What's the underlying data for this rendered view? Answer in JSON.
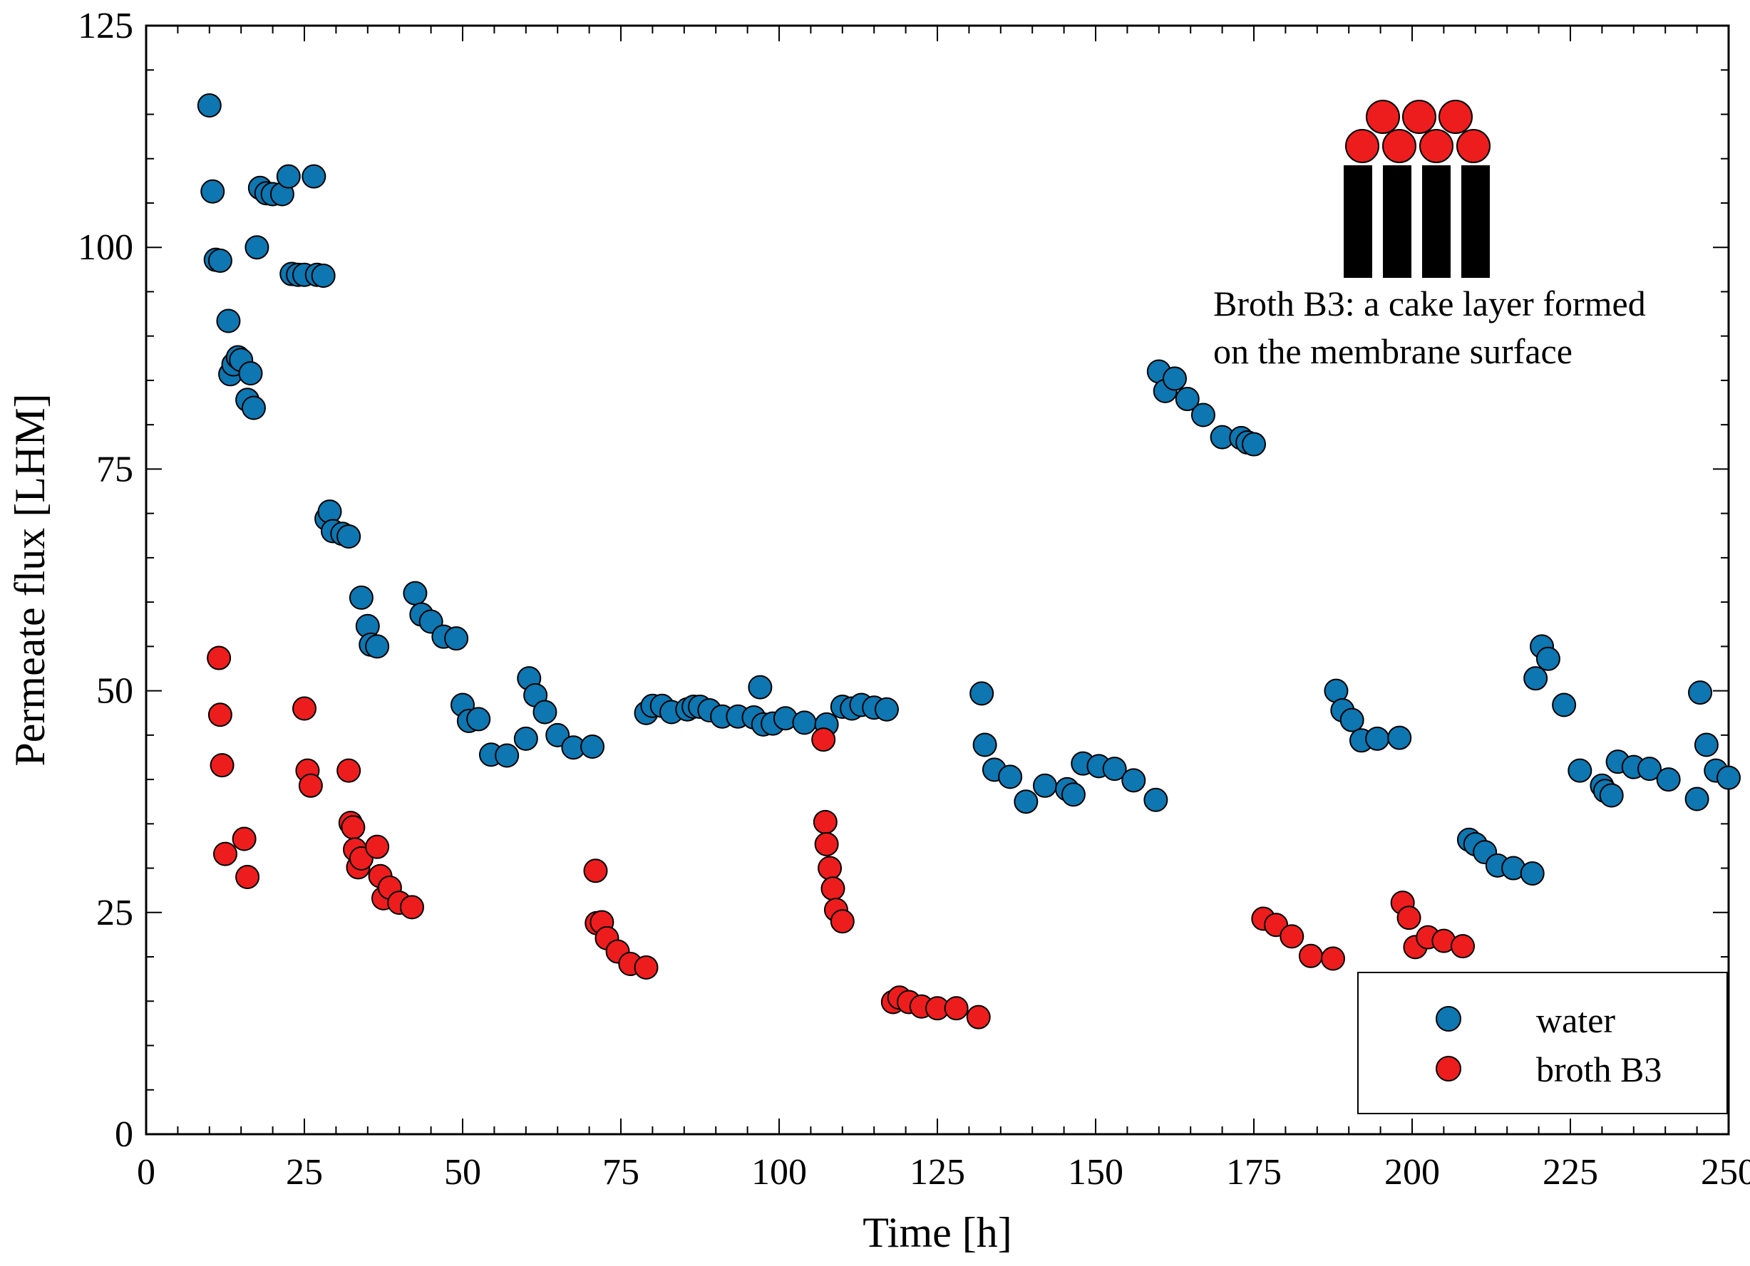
{
  "chart_data": {
    "type": "scatter",
    "xlabel": "Time [h]",
    "ylabel": "Permeate flux [LHM]",
    "xlim": [
      0,
      250
    ],
    "ylim": [
      0,
      125
    ],
    "xticks": [
      "0",
      "25",
      "50",
      "75",
      "100",
      "125",
      "150",
      "175",
      "200",
      "225",
      "250"
    ],
    "yticks": [
      "0",
      "25",
      "50",
      "75",
      "100",
      "125"
    ],
    "legend_position": "bottom-right",
    "annotation": [
      "Broth B3: a cake layer formed",
      "on the membrane surface"
    ],
    "series": [
      {
        "name": "water",
        "color": "#0e76b0",
        "points": [
          [
            10,
            116
          ],
          [
            10.5,
            106.3
          ],
          [
            11,
            98.6
          ],
          [
            11.7,
            98.5
          ],
          [
            13,
            91.7
          ],
          [
            13.3,
            85.7
          ],
          [
            13.8,
            86.8
          ],
          [
            14.5,
            87.6
          ],
          [
            15,
            87.3
          ],
          [
            16,
            82.8
          ],
          [
            16.5,
            85.8
          ],
          [
            17,
            81.9
          ],
          [
            17.5,
            100
          ],
          [
            18,
            106.7
          ],
          [
            19,
            106.1
          ],
          [
            20,
            106
          ],
          [
            21.5,
            106
          ],
          [
            22.5,
            108
          ],
          [
            23,
            97
          ],
          [
            24,
            96.9
          ],
          [
            25,
            96.9
          ],
          [
            26.5,
            108
          ],
          [
            27,
            96.9
          ],
          [
            28,
            96.8
          ],
          [
            28.5,
            69.4
          ],
          [
            29,
            70.2
          ],
          [
            29.5,
            68
          ],
          [
            31,
            67.7
          ],
          [
            32,
            67.4
          ],
          [
            34,
            60.5
          ],
          [
            35,
            57.3
          ],
          [
            35.5,
            55.2
          ],
          [
            36.5,
            55
          ],
          [
            42.5,
            61
          ],
          [
            43.5,
            58.6
          ],
          [
            45,
            57.8
          ],
          [
            47,
            56.1
          ],
          [
            49,
            55.9
          ],
          [
            50,
            48.4
          ],
          [
            51,
            46.6
          ],
          [
            52.5,
            46.8
          ],
          [
            54.5,
            42.8
          ],
          [
            57,
            42.7
          ],
          [
            60,
            44.6
          ],
          [
            60.5,
            51.4
          ],
          [
            61.5,
            49.5
          ],
          [
            63,
            47.6
          ],
          [
            65,
            45
          ],
          [
            67.5,
            43.6
          ],
          [
            70.5,
            43.7
          ],
          [
            79,
            47.5
          ],
          [
            80,
            48.3
          ],
          [
            81.5,
            48.3
          ],
          [
            83,
            47.6
          ],
          [
            85.5,
            47.9
          ],
          [
            86.5,
            48.2
          ],
          [
            87.5,
            48.2
          ],
          [
            89,
            47.8
          ],
          [
            91,
            47.1
          ],
          [
            93.5,
            47.1
          ],
          [
            96,
            47
          ],
          [
            97,
            50.4
          ],
          [
            97.5,
            46.2
          ],
          [
            99,
            46.3
          ],
          [
            101,
            46.9
          ],
          [
            104,
            46.4
          ],
          [
            107.5,
            46.2
          ],
          [
            110,
            48.2
          ],
          [
            111.5,
            48
          ],
          [
            113,
            48.4
          ],
          [
            115,
            48.1
          ],
          [
            117,
            47.9
          ],
          [
            132,
            49.7
          ],
          [
            132.5,
            43.9
          ],
          [
            134,
            41.1
          ],
          [
            136.5,
            40.3
          ],
          [
            139,
            37.5
          ],
          [
            142,
            39.3
          ],
          [
            145.5,
            38.9
          ],
          [
            146.5,
            38.3
          ],
          [
            148,
            41.8
          ],
          [
            150.5,
            41.5
          ],
          [
            153,
            41.2
          ],
          [
            156,
            39.9
          ],
          [
            159.5,
            37.7
          ],
          [
            160,
            86
          ],
          [
            161,
            83.8
          ],
          [
            162.5,
            85.2
          ],
          [
            164.5,
            82.9
          ],
          [
            167,
            81.1
          ],
          [
            170,
            78.6
          ],
          [
            173,
            78.5
          ],
          [
            174,
            78
          ],
          [
            175,
            77.8
          ],
          [
            188,
            50
          ],
          [
            189,
            47.8
          ],
          [
            190.5,
            46.7
          ],
          [
            192,
            44.4
          ],
          [
            194.5,
            44.6
          ],
          [
            198,
            44.7
          ],
          [
            209,
            33.2
          ],
          [
            210,
            32.7
          ],
          [
            211.5,
            31.8
          ],
          [
            213.5,
            30.3
          ],
          [
            216,
            30
          ],
          [
            219,
            29.4
          ],
          [
            219.5,
            51.4
          ],
          [
            220.5,
            55
          ],
          [
            221.5,
            53.6
          ],
          [
            224,
            48.4
          ],
          [
            226.5,
            41
          ],
          [
            230,
            39.3
          ],
          [
            230.5,
            38.7
          ],
          [
            231.5,
            38.2
          ],
          [
            232.5,
            42
          ],
          [
            235,
            41.4
          ],
          [
            237.5,
            41.2
          ],
          [
            240.5,
            40
          ],
          [
            245,
            37.8
          ],
          [
            245.5,
            49.8
          ],
          [
            246.5,
            43.9
          ],
          [
            248,
            41
          ],
          [
            250,
            40.2
          ]
        ]
      },
      {
        "name": "broth B3",
        "color": "#ee1d1d",
        "points": [
          [
            11.5,
            53.7
          ],
          [
            11.7,
            47.3
          ],
          [
            12,
            41.6
          ],
          [
            12.5,
            31.6
          ],
          [
            15.5,
            33.3
          ],
          [
            16,
            29
          ],
          [
            25,
            48
          ],
          [
            25.5,
            41
          ],
          [
            26,
            39.3
          ],
          [
            32,
            41
          ],
          [
            32.3,
            35.1
          ],
          [
            32.7,
            34.6
          ],
          [
            33,
            32.1
          ],
          [
            33.5,
            30.1
          ],
          [
            34,
            31.1
          ],
          [
            36.5,
            32.4
          ],
          [
            37,
            29.1
          ],
          [
            37.5,
            26.6
          ],
          [
            38.5,
            27.8
          ],
          [
            40,
            26.1
          ],
          [
            42,
            25.6
          ],
          [
            71,
            29.7
          ],
          [
            71.2,
            23.8
          ],
          [
            72,
            23.9
          ],
          [
            72.8,
            22.1
          ],
          [
            74.5,
            20.6
          ],
          [
            76.5,
            19.2
          ],
          [
            79,
            18.8
          ],
          [
            107,
            44.5
          ],
          [
            107.3,
            35.2
          ],
          [
            107.5,
            32.7
          ],
          [
            108,
            30
          ],
          [
            108.5,
            27.7
          ],
          [
            109,
            25.3
          ],
          [
            110,
            24
          ],
          [
            118,
            14.9
          ],
          [
            119,
            15.4
          ],
          [
            120.5,
            14.9
          ],
          [
            122.5,
            14.4
          ],
          [
            125,
            14.2
          ],
          [
            128,
            14.2
          ],
          [
            131.5,
            13.2
          ],
          [
            176.5,
            24.3
          ],
          [
            178.5,
            23.6
          ],
          [
            181,
            22.3
          ],
          [
            184,
            20.1
          ],
          [
            187.5,
            19.8
          ],
          [
            198.5,
            26.1
          ],
          [
            199.5,
            24.4
          ],
          [
            200.5,
            21.1
          ],
          [
            202.5,
            22.2
          ],
          [
            205,
            21.8
          ],
          [
            208,
            21.2
          ]
        ]
      }
    ]
  }
}
